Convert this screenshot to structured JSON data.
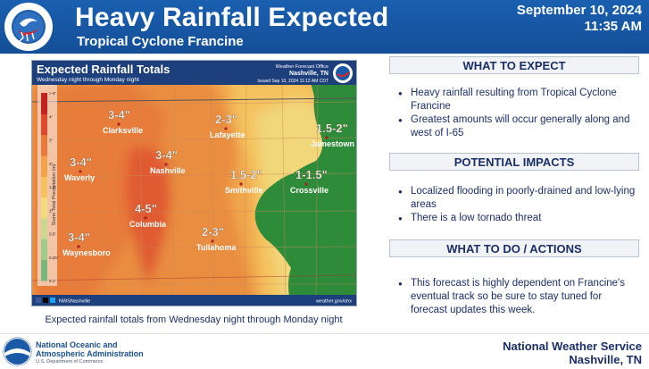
{
  "header": {
    "title": "Heavy Rainfall Expected",
    "subtitle": "Tropical Cyclone Francine",
    "date": "September 10, 2024",
    "time": "11:35 AM",
    "logo_text": "NATIONAL WEATHER SERVICE"
  },
  "map": {
    "title": "Expected Rainfall Totals",
    "period": "Wednesday night through Monday night",
    "office_label": "Weather Forecast Office",
    "office_city": "Nashville, TN",
    "issued": "Issued Sep 10, 2024 11:12 AM CDT",
    "legend_title": "Storm Total Precipitation (in)",
    "legend_ticks": [
      "> 6\"",
      "4\"",
      "3\"",
      "2\"",
      "1.5\"",
      "1\"",
      "0.5\"",
      "0.25\"",
      "0.1\""
    ],
    "legend_colors": [
      "#c4221f",
      "#dd4a2c",
      "#ea7a3a",
      "#f2a24a",
      "#f4c25e",
      "#f3da7a",
      "#c9d78f",
      "#9fcb8c",
      "#78b87c"
    ],
    "social": "NWSNashville",
    "website": "weather.gov/ohx",
    "labels": [
      {
        "amount": "3-4\"",
        "city": "Clarksville"
      },
      {
        "amount": "2-3\"",
        "city": "Lafayette"
      },
      {
        "amount": "1.5-2\"",
        "city": "Jamestown"
      },
      {
        "amount": "3-4\"",
        "city": "Nashville"
      },
      {
        "amount": "3-4\"",
        "city": "Waverly"
      },
      {
        "amount": "1.5-2\"",
        "city": "Smithville"
      },
      {
        "amount": "1-1.5\"",
        "city": "Crossville"
      },
      {
        "amount": "4-5\"",
        "city": "Columbia"
      },
      {
        "amount": "2-3\"",
        "city": "Tullahoma"
      },
      {
        "amount": "3-4\"",
        "city": "Waynesboro"
      }
    ],
    "caption": "Expected rainfall totals from Wednesday night through Monday night"
  },
  "sections": [
    {
      "heading": "WHAT TO EXPECT",
      "bullets": [
        "Heavy rainfall resulting from Tropical Cyclone Francine",
        "Greatest amounts will occur generally along and west of I-65"
      ]
    },
    {
      "heading": "POTENTIAL IMPACTS",
      "bullets": [
        "Localized flooding in poorly-drained and low-lying areas",
        "There is a low tornado threat"
      ]
    },
    {
      "heading": "WHAT TO DO / ACTIONS",
      "bullets": [
        "This forecast is highly dependent on Francine's eventual track so be sure to stay tuned for forecast updates this week."
      ]
    }
  ],
  "footer": {
    "noaa_name_1": "National Oceanic and",
    "noaa_name_2": "Atmospheric Administration",
    "noaa_dept": "U.S. Department of Commerce",
    "noaa_logo_text": "NOAA",
    "nws_name": "National Weather Service",
    "nws_office": "Nashville, TN"
  }
}
